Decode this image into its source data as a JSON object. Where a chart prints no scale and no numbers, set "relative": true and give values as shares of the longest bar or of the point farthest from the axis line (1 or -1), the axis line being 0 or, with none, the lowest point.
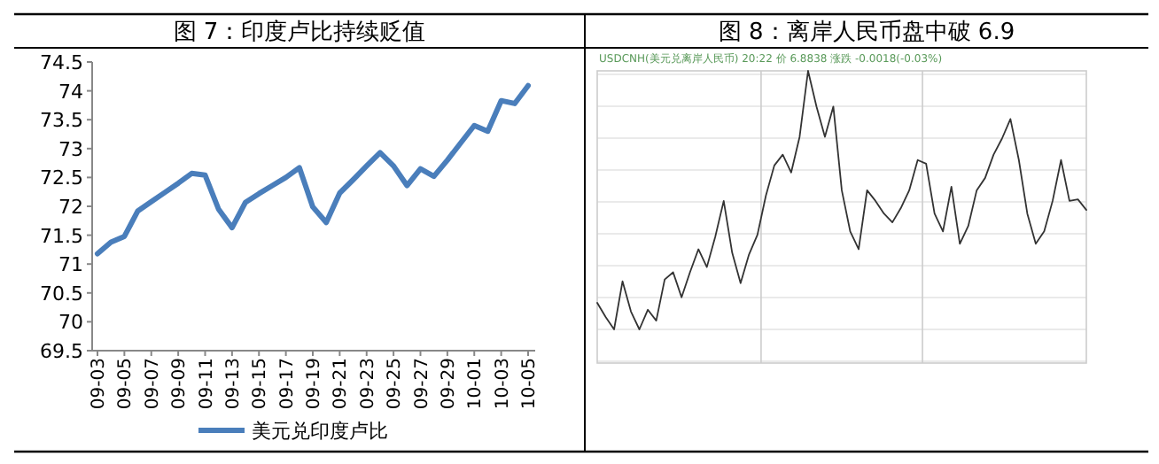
{
  "chart_data": [
    {
      "type": "line",
      "title": "图 7：印度卢比持续贬值",
      "categories": [
        "09-03",
        null,
        "09-05",
        null,
        "09-07",
        null,
        "09-09",
        null,
        "09-11",
        null,
        "09-13",
        null,
        "09-15",
        null,
        "09-17",
        null,
        "09-19",
        null,
        "09-21",
        null,
        "09-23",
        null,
        "09-25",
        null,
        "09-27",
        null,
        "09-29",
        null,
        "10-01",
        null,
        "10-03",
        null,
        "10-05"
      ],
      "series": [
        {
          "name": "美元兑印度卢比",
          "color": "#4a7ebb",
          "values": [
            71.18,
            71.38,
            71.48,
            71.92,
            72.08,
            72.24,
            72.4,
            72.57,
            72.54,
            71.95,
            71.63,
            72.07,
            72.22,
            72.36,
            72.5,
            72.67,
            71.99,
            71.72,
            72.23,
            72.46,
            72.7,
            72.93,
            72.7,
            72.36,
            72.65,
            72.52,
            72.8,
            73.1,
            73.4,
            73.3,
            73.83,
            73.78,
            74.09
          ]
        }
      ],
      "ylim": [
        69.5,
        74.5
      ],
      "yticks": [
        69.5,
        70,
        70.5,
        71,
        71.5,
        72,
        72.5,
        73,
        73.5,
        74,
        74.5
      ],
      "legend": "bottom",
      "grid": false
    },
    {
      "type": "line",
      "title": "图 8：离岸人民币盘中破 6.9",
      "annotations": [
        "USDCNH(美元兑离岸人民币) 20:22 价 6.8838 涨跌 -0.0018(-0.03%)"
      ],
      "categories": [
        null,
        null,
        null,
        null,
        null,
        null,
        null,
        null,
        null,
        null,
        null,
        null,
        null,
        null,
        null,
        null,
        null,
        null,
        null,
        null,
        null,
        null,
        null,
        null,
        null,
        null,
        null,
        null,
        null,
        null,
        null,
        null,
        null,
        null,
        null,
        null,
        null,
        null,
        null,
        null,
        null,
        null,
        null,
        null,
        null,
        null,
        null,
        null,
        null,
        null,
        null,
        null,
        null,
        null,
        null,
        null,
        null,
        null,
        null
      ],
      "series": [
        {
          "color": "#333333",
          "values": [
            0.103,
            0.048,
            0,
            0.186,
            0.069,
            0,
            0.076,
            0.034,
            0.193,
            0.221,
            0.124,
            0.221,
            0.31,
            0.241,
            0.359,
            0.497,
            0.297,
            0.179,
            0.29,
            0.366,
            0.517,
            0.634,
            0.676,
            0.607,
            0.745,
            1,
            0.862,
            0.745,
            0.862,
            0.538,
            0.379,
            0.31,
            0.538,
            0.497,
            0.448,
            0.414,
            0.469,
            0.538,
            0.655,
            0.641,
            0.448,
            0.379,
            0.552,
            0.331,
            0.4,
            0.538,
            0.586,
            0.676,
            0.738,
            0.814,
            0.655,
            0.448,
            0.331,
            0.379,
            0.497,
            0.655,
            0.497,
            0.503,
            0.462
          ]
        }
      ],
      "relative": true,
      "grid": true
    }
  ]
}
